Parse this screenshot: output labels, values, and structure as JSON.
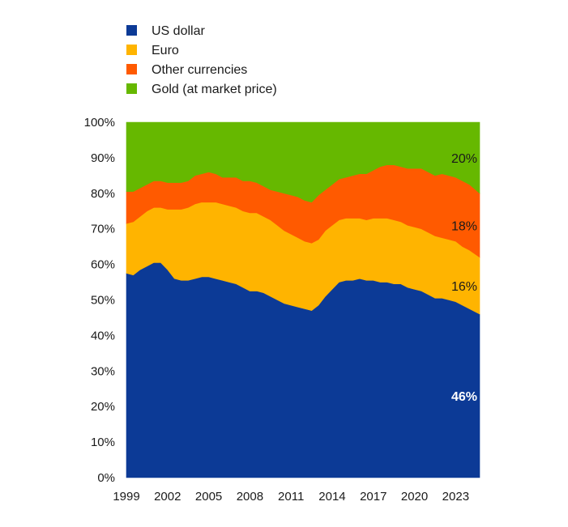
{
  "chart_data": {
    "type": "area",
    "stacked": true,
    "title": "",
    "xlabel": "",
    "ylabel": "",
    "ylim": [
      0,
      100
    ],
    "xlim": [
      1999,
      2024.75
    ],
    "grid": false,
    "legend_position": "top-left",
    "x_ticks": [
      "1999",
      "2002",
      "2005",
      "2008",
      "2011",
      "2014",
      "2017",
      "2020",
      "2023"
    ],
    "y_ticks": [
      "0%",
      "10%",
      "20%",
      "30%",
      "40%",
      "50%",
      "60%",
      "70%",
      "80%",
      "90%",
      "100%"
    ],
    "x": [
      1999,
      1999.5,
      2000,
      2000.5,
      2001,
      2001.5,
      2002,
      2002.5,
      2003,
      2003.5,
      2004,
      2004.5,
      2005,
      2005.5,
      2006,
      2006.5,
      2007,
      2007.5,
      2008,
      2008.5,
      2009,
      2009.5,
      2010,
      2010.5,
      2011,
      2011.5,
      2012,
      2012.5,
      2013,
      2013.5,
      2014,
      2014.5,
      2015,
      2015.5,
      2016,
      2016.5,
      2017,
      2017.5,
      2018,
      2018.5,
      2019,
      2019.5,
      2020,
      2020.5,
      2021,
      2021.5,
      2022,
      2022.5,
      2023,
      2023.5,
      2024,
      2024.75
    ],
    "series": [
      {
        "name": "US dollar",
        "color": "#0c3a96",
        "values": [
          57.5,
          57,
          58.5,
          59.5,
          60.5,
          60.5,
          58.5,
          56,
          55.5,
          55.5,
          56,
          56.5,
          56.5,
          56,
          55.5,
          55,
          54.5,
          53.5,
          52.5,
          52.5,
          52,
          51,
          50,
          49,
          48.5,
          48,
          47.5,
          47,
          48.5,
          51,
          53,
          55,
          55.5,
          55.5,
          56,
          55.5,
          55.5,
          55,
          55,
          54.5,
          54.5,
          53.5,
          53,
          52.5,
          51.5,
          50.5,
          50.5,
          50,
          49.5,
          48.5,
          47.5,
          46
        ]
      },
      {
        "name": "Euro",
        "color": "#ffb400",
        "values": [
          14,
          15,
          15,
          15.5,
          15.5,
          15.5,
          17,
          19.5,
          20,
          20.5,
          21,
          21,
          21,
          21.5,
          21.5,
          21.5,
          21.5,
          21.5,
          22,
          22,
          21.5,
          21.5,
          21,
          20.5,
          20,
          19.5,
          19,
          19,
          18.5,
          18.5,
          18,
          17.5,
          17.5,
          17.5,
          17,
          17,
          17.5,
          18,
          18,
          18,
          17.5,
          17.5,
          17.5,
          17.5,
          17.5,
          17.5,
          17,
          17,
          17,
          16.5,
          16.5,
          16
        ]
      },
      {
        "name": "Other currencies",
        "color": "#ff5a00",
        "values": [
          9,
          8.5,
          8,
          7.5,
          7.5,
          7.5,
          7.5,
          7.5,
          7.5,
          7.5,
          8,
          8,
          8.5,
          8,
          7.5,
          8,
          8.5,
          8.5,
          9,
          8.5,
          8.5,
          8.5,
          9.5,
          10.5,
          11,
          11.5,
          11.5,
          11.5,
          12.5,
          11.5,
          11.5,
          11.5,
          11.5,
          12,
          12.5,
          13,
          13.5,
          14.5,
          15,
          15.5,
          15.5,
          16,
          16.5,
          17,
          17,
          17,
          18,
          18,
          18,
          18.5,
          18.5,
          18
        ]
      },
      {
        "name": "Gold (at market price)",
        "color": "#66b800",
        "values": [
          19.5,
          19.5,
          18.5,
          17.5,
          16.5,
          16.5,
          17,
          17,
          17,
          16.5,
          15,
          14.5,
          14,
          14.5,
          15.5,
          15.5,
          15.5,
          16.5,
          16.5,
          17,
          18,
          19,
          19.5,
          20,
          20.5,
          21,
          22,
          22.5,
          20.5,
          19,
          17.5,
          16,
          15.5,
          15,
          14.5,
          14.5,
          13.5,
          12.5,
          12,
          12,
          12.5,
          13,
          13,
          13,
          14,
          15,
          14.5,
          15,
          15.5,
          16.5,
          17.5,
          20
        ]
      }
    ],
    "end_labels": [
      {
        "series": "US dollar",
        "text": "46%",
        "color": "#ffffff",
        "bold": true
      },
      {
        "series": "Euro",
        "text": "16%",
        "color": "#1a1a1a",
        "bold": false
      },
      {
        "series": "Other currencies",
        "text": "18%",
        "color": "#1a1a1a",
        "bold": false
      },
      {
        "series": "Gold (at market price)",
        "text": "20%",
        "color": "#1a1a1a",
        "bold": false
      }
    ]
  }
}
